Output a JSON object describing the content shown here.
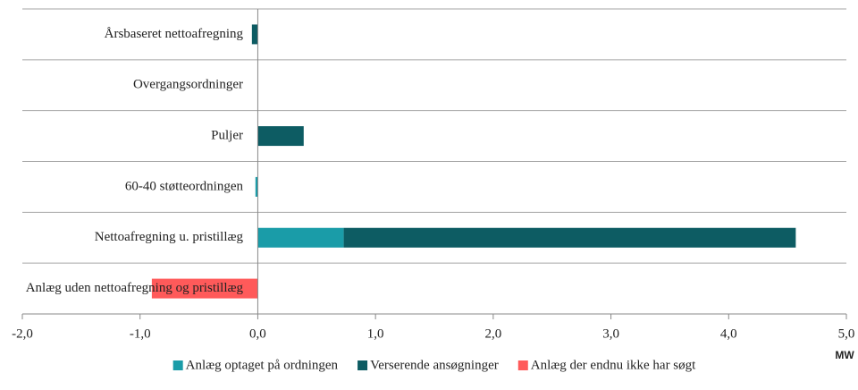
{
  "chart_data": {
    "type": "stacked-barh",
    "categories": [
      "Årsbaseret nettoafregning",
      "Overgangsordninger",
      "Puljer",
      "60-40 støtteordningen",
      "Nettoafregning u. pristillæg",
      "Anlæg uden nettoafregning og pristillæg"
    ],
    "series": [
      {
        "name": "Anlæg optaget på ordningen",
        "color": "#1a9ca8",
        "values": [
          0,
          0,
          0,
          -0.02,
          0.73,
          0
        ]
      },
      {
        "name": "Verserende ansøgninger",
        "color": "#0d5c63",
        "values": [
          -0.05,
          0,
          0.39,
          0,
          3.84,
          0
        ]
      },
      {
        "name": "Anlæg der endnu ikke har søgt",
        "color": "#ff5a5a",
        "values": [
          0,
          0,
          0,
          0,
          0,
          -0.9
        ]
      }
    ],
    "xlim": [
      -2,
      5
    ],
    "xticks": [
      {
        "value": -2,
        "label": "-2,0"
      },
      {
        "value": -1,
        "label": "-1,0"
      },
      {
        "value": 0,
        "label": "0,0"
      },
      {
        "value": 1,
        "label": "1,0"
      },
      {
        "value": 2,
        "label": "2,0"
      },
      {
        "value": 3,
        "label": "3,0"
      },
      {
        "value": 4,
        "label": "4,0"
      },
      {
        "value": 5,
        "label": "5,0"
      }
    ],
    "xlabel": "MW",
    "legend": "bottom"
  }
}
